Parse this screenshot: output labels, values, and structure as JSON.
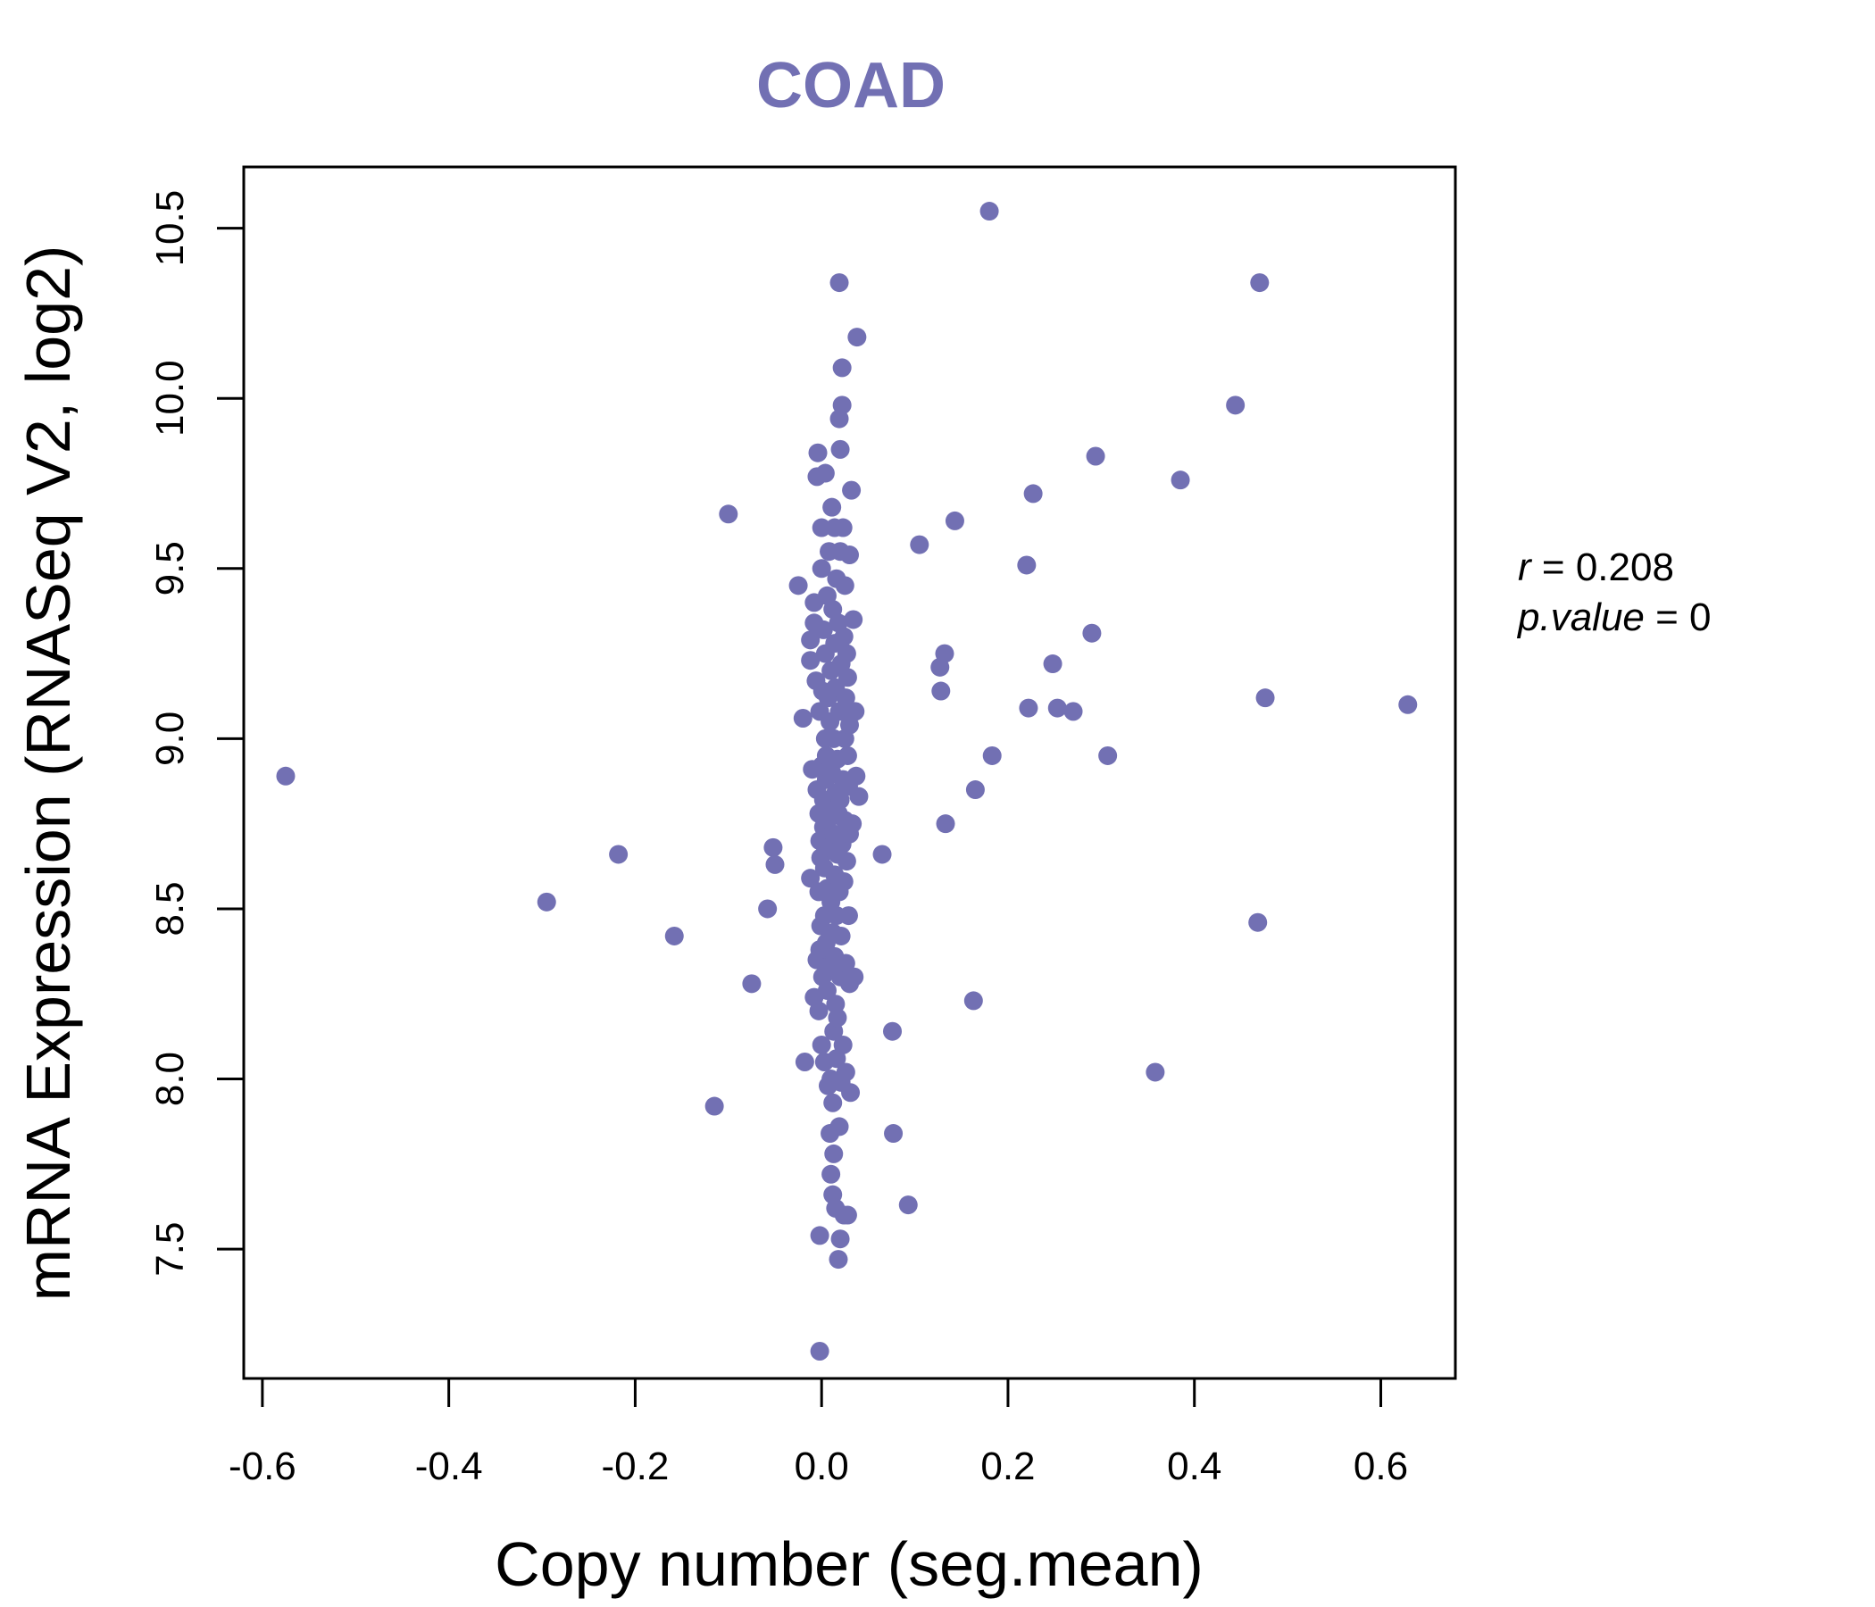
{
  "chart_data": {
    "type": "scatter",
    "title": "COAD",
    "xlabel": "Copy number (seg.mean)",
    "ylabel": "mRNA Expression (RNASeq V2, log2)",
    "xlim": [
      -0.62,
      0.68
    ],
    "ylim": [
      7.12,
      10.68
    ],
    "x_ticks": [
      -0.6,
      -0.4,
      -0.2,
      0.0,
      0.2,
      0.4,
      0.6
    ],
    "x_tick_labels": [
      "-0.6",
      "-0.4",
      "-0.2",
      "0.0",
      "0.2",
      "0.4",
      "0.6"
    ],
    "y_ticks": [
      7.5,
      8.0,
      8.5,
      9.0,
      9.5,
      10.0,
      10.5
    ],
    "y_tick_labels": [
      "7.5",
      "8.0",
      "8.5",
      "9.0",
      "9.5",
      "10.0",
      "10.5"
    ],
    "point_color": "#7270b3",
    "stats": {
      "r_label": "r",
      "r_value": "0.208",
      "p_label": "p.value",
      "p_value": "0"
    },
    "points": [
      [
        -0.575,
        8.89
      ],
      [
        -0.295,
        8.52
      ],
      [
        -0.218,
        8.66
      ],
      [
        -0.158,
        8.42
      ],
      [
        -0.115,
        7.92
      ],
      [
        -0.1,
        9.66
      ],
      [
        -0.075,
        8.28
      ],
      [
        -0.058,
        8.5
      ],
      [
        -0.052,
        8.68
      ],
      [
        -0.05,
        8.63
      ],
      [
        -0.025,
        9.45
      ],
      [
        -0.02,
        9.06
      ],
      [
        -0.018,
        8.05
      ],
      [
        -0.012,
        8.59
      ],
      [
        -0.012,
        9.29
      ],
      [
        -0.012,
        9.23
      ],
      [
        -0.01,
        8.91
      ],
      [
        -0.008,
        8.24
      ],
      [
        -0.008,
        9.4
      ],
      [
        -0.008,
        9.34
      ],
      [
        -0.006,
        9.17
      ],
      [
        -0.005,
        8.35
      ],
      [
        -0.005,
        8.85
      ],
      [
        -0.005,
        9.77
      ],
      [
        -0.004,
        9.84
      ],
      [
        -0.003,
        8.78
      ],
      [
        -0.003,
        8.55
      ],
      [
        -0.003,
        8.2
      ],
      [
        -0.002,
        8.38
      ],
      [
        -0.002,
        8.7
      ],
      [
        -0.002,
        9.08
      ],
      [
        -0.002,
        7.54
      ],
      [
        -0.002,
        7.2
      ],
      [
        -0.001,
        8.65
      ],
      [
        -0.001,
        8.45
      ],
      [
        0.0,
        8.92
      ],
      [
        0.0,
        9.62
      ],
      [
        0.0,
        9.5
      ],
      [
        0.0,
        8.1
      ],
      [
        0.001,
        8.3
      ],
      [
        0.001,
        9.14
      ],
      [
        0.002,
        8.74
      ],
      [
        0.002,
        8.82
      ],
      [
        0.002,
        9.32
      ],
      [
        0.003,
        8.05
      ],
      [
        0.003,
        8.48
      ],
      [
        0.003,
        8.62
      ],
      [
        0.004,
        9.0
      ],
      [
        0.004,
        9.25
      ],
      [
        0.004,
        9.78
      ],
      [
        0.005,
        8.95
      ],
      [
        0.005,
        8.4
      ],
      [
        0.005,
        8.88
      ],
      [
        0.006,
        8.26
      ],
      [
        0.006,
        8.56
      ],
      [
        0.006,
        9.42
      ],
      [
        0.007,
        8.76
      ],
      [
        0.007,
        9.12
      ],
      [
        0.007,
        7.98
      ],
      [
        0.008,
        8.68
      ],
      [
        0.008,
        9.55
      ],
      [
        0.008,
        8.33
      ],
      [
        0.009,
        8.8
      ],
      [
        0.009,
        9.05
      ],
      [
        0.009,
        7.84
      ],
      [
        0.01,
        8.52
      ],
      [
        0.01,
        9.2
      ],
      [
        0.01,
        8.0
      ],
      [
        0.01,
        7.72
      ],
      [
        0.011,
        8.9
      ],
      [
        0.011,
        9.68
      ],
      [
        0.012,
        8.43
      ],
      [
        0.012,
        9.38
      ],
      [
        0.012,
        7.93
      ],
      [
        0.012,
        7.66
      ],
      [
        0.013,
        8.72
      ],
      [
        0.013,
        8.14
      ],
      [
        0.013,
        9.0
      ],
      [
        0.013,
        7.78
      ],
      [
        0.014,
        8.6
      ],
      [
        0.014,
        9.28
      ],
      [
        0.014,
        8.36
      ],
      [
        0.014,
        9.62
      ],
      [
        0.015,
        8.84
      ],
      [
        0.015,
        8.22
      ],
      [
        0.015,
        9.15
      ],
      [
        0.015,
        7.62
      ],
      [
        0.016,
        8.48
      ],
      [
        0.016,
        9.47
      ],
      [
        0.016,
        8.06
      ],
      [
        0.017,
        8.94
      ],
      [
        0.017,
        8.66
      ],
      [
        0.017,
        8.18
      ],
      [
        0.018,
        9.34
      ],
      [
        0.018,
        8.78
      ],
      [
        0.018,
        7.47
      ],
      [
        0.019,
        8.55
      ],
      [
        0.019,
        9.08
      ],
      [
        0.019,
        7.86
      ],
      [
        0.019,
        10.34
      ],
      [
        0.019,
        9.94
      ],
      [
        0.02,
        8.3
      ],
      [
        0.02,
        8.82
      ],
      [
        0.02,
        9.55
      ],
      [
        0.02,
        9.85
      ],
      [
        0.02,
        7.53
      ],
      [
        0.021,
        8.42
      ],
      [
        0.021,
        9.22
      ],
      [
        0.021,
        7.99
      ],
      [
        0.022,
        8.69
      ],
      [
        0.022,
        9.98
      ],
      [
        0.022,
        10.09
      ],
      [
        0.023,
        8.88
      ],
      [
        0.023,
        8.1
      ],
      [
        0.023,
        9.62
      ],
      [
        0.024,
        8.58
      ],
      [
        0.024,
        9.3
      ],
      [
        0.024,
        7.6
      ],
      [
        0.025,
        8.76
      ],
      [
        0.025,
        9.45
      ],
      [
        0.025,
        9.0
      ],
      [
        0.026,
        8.34
      ],
      [
        0.026,
        9.12
      ],
      [
        0.026,
        8.02
      ],
      [
        0.027,
        8.64
      ],
      [
        0.027,
        9.25
      ],
      [
        0.028,
        8.95
      ],
      [
        0.028,
        9.18
      ],
      [
        0.028,
        7.6
      ],
      [
        0.029,
        8.48
      ],
      [
        0.029,
        8.86
      ],
      [
        0.03,
        9.04
      ],
      [
        0.03,
        8.72
      ],
      [
        0.03,
        8.28
      ],
      [
        0.03,
        9.54
      ],
      [
        0.031,
        7.96
      ],
      [
        0.032,
        9.73
      ],
      [
        0.033,
        8.75
      ],
      [
        0.034,
        9.35
      ],
      [
        0.035,
        8.3
      ],
      [
        0.036,
        9.08
      ],
      [
        0.037,
        8.89
      ],
      [
        0.038,
        10.18
      ],
      [
        0.04,
        8.83
      ],
      [
        0.065,
        8.66
      ],
      [
        0.076,
        8.14
      ],
      [
        0.077,
        7.84
      ],
      [
        0.093,
        7.63
      ],
      [
        0.105,
        9.57
      ],
      [
        0.127,
        9.21
      ],
      [
        0.128,
        9.14
      ],
      [
        0.132,
        9.25
      ],
      [
        0.133,
        8.75
      ],
      [
        0.143,
        9.64
      ],
      [
        0.163,
        8.23
      ],
      [
        0.165,
        8.85
      ],
      [
        0.18,
        10.55
      ],
      [
        0.183,
        8.95
      ],
      [
        0.22,
        9.51
      ],
      [
        0.222,
        9.09
      ],
      [
        0.227,
        9.72
      ],
      [
        0.248,
        9.22
      ],
      [
        0.253,
        9.09
      ],
      [
        0.27,
        9.08
      ],
      [
        0.29,
        9.31
      ],
      [
        0.294,
        9.83
      ],
      [
        0.307,
        8.95
      ],
      [
        0.358,
        8.02
      ],
      [
        0.385,
        9.76
      ],
      [
        0.444,
        9.98
      ],
      [
        0.468,
        8.46
      ],
      [
        0.47,
        10.34
      ],
      [
        0.476,
        9.12
      ],
      [
        0.629,
        9.1
      ]
    ]
  }
}
